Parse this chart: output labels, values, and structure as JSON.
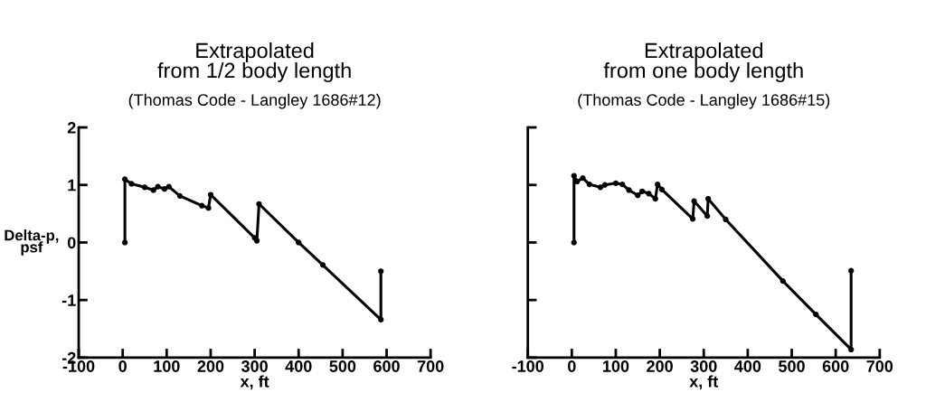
{
  "chart_data": [
    {
      "type": "line",
      "title": "Extrapolated\nfrom 1/2 body length",
      "subtitle": "(Thomas Code - Langley 1686#12)",
      "xlabel": "x, ft",
      "ylabel": "Delta-p,\npsf",
      "xlim": [
        -100,
        700
      ],
      "xticks": [
        -100,
        0,
        100,
        200,
        300,
        400,
        500,
        600,
        700
      ],
      "ylim": [
        -2,
        2
      ],
      "yticks": [
        -2,
        -1,
        0,
        1,
        2
      ],
      "grid": false,
      "marker": "circle",
      "line_style": "solid",
      "series": [
        {
          "color": "#000000",
          "x": [
            5,
            5,
            20,
            50,
            70,
            80,
            95,
            105,
            130,
            180,
            195,
            200,
            300,
            305,
            310,
            400,
            455,
            587,
            587
          ],
          "values": [
            0,
            1.1,
            1.02,
            0.96,
            0.91,
            0.97,
            0.93,
            0.97,
            0.81,
            0.64,
            0.6,
            0.83,
            0.08,
            0.03,
            0.67,
            0,
            -0.39,
            -1.34,
            -0.5
          ]
        }
      ]
    },
    {
      "type": "line",
      "title": "Extrapolated\nfrom one body length",
      "subtitle": "(Thomas Code - Langley 1686#15)",
      "xlabel": "x, ft",
      "xlim": [
        -100,
        700
      ],
      "xticks": [
        -100,
        0,
        100,
        200,
        300,
        400,
        500,
        600,
        700
      ],
      "ylim": [
        -2,
        2
      ],
      "yticks": [
        -2,
        -1,
        0,
        1,
        2
      ],
      "tick_labels": "x",
      "grid": false,
      "marker": "circle",
      "line_style": "solid",
      "series": [
        {
          "color": "#000000",
          "x": [
            5,
            5,
            12,
            25,
            40,
            65,
            75,
            100,
            115,
            130,
            150,
            160,
            175,
            190,
            195,
            205,
            275,
            278,
            308,
            310,
            350,
            480,
            555,
            635,
            635
          ],
          "values": [
            0,
            1.16,
            1.06,
            1.12,
            1.01,
            0.96,
            1.0,
            1.03,
            1.01,
            0.91,
            0.82,
            0.89,
            0.85,
            0.76,
            1.01,
            0.92,
            0.41,
            0.72,
            0.46,
            0.76,
            0.4,
            -0.67,
            -1.25,
            -1.86,
            -0.49
          ]
        }
      ]
    }
  ]
}
